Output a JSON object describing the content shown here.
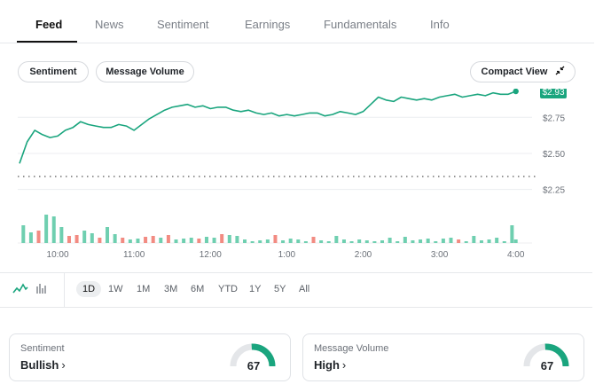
{
  "tabs": [
    {
      "label": "Feed",
      "active": true
    },
    {
      "label": "News"
    },
    {
      "label": "Sentiment"
    },
    {
      "label": "Earnings"
    },
    {
      "label": "Fundamentals"
    },
    {
      "label": "Info"
    }
  ],
  "toggles": {
    "sentiment": "Sentiment",
    "message_volume": "Message Volume",
    "compact_view": "Compact View"
  },
  "chart_data": {
    "type": "line",
    "price_label": "$2.93",
    "accent": "#1aa57e",
    "volume_up_color": "#6fcfb0",
    "volume_down_color": "#f28b82",
    "y_ticks": [
      "$2.75",
      "$2.50",
      "$2.25"
    ],
    "y_tick_values": [
      2.75,
      2.5,
      2.25
    ],
    "ylim": [
      2.18,
      3.0
    ],
    "x_ticks": [
      "10:00",
      "11:00",
      "12:00",
      "1:00",
      "2:00",
      "3:00",
      "4:00"
    ],
    "x_tick_values": [
      0.5,
      1.5,
      2.5,
      3.5,
      4.5,
      5.5,
      6.5
    ],
    "xlim": [
      0.0,
      6.55
    ],
    "reference_line": 2.34,
    "price_x": [
      0.0,
      0.1,
      0.2,
      0.3,
      0.4,
      0.5,
      0.6,
      0.7,
      0.8,
      0.9,
      1.0,
      1.1,
      1.2,
      1.3,
      1.4,
      1.5,
      1.6,
      1.7,
      1.8,
      1.9,
      2.0,
      2.1,
      2.2,
      2.3,
      2.4,
      2.5,
      2.6,
      2.7,
      2.8,
      2.9,
      3.0,
      3.1,
      3.2,
      3.3,
      3.4,
      3.5,
      3.6,
      3.7,
      3.8,
      3.9,
      4.0,
      4.1,
      4.2,
      4.3,
      4.4,
      4.5,
      4.6,
      4.7,
      4.8,
      4.9,
      5.0,
      5.1,
      5.2,
      5.3,
      5.4,
      5.5,
      5.6,
      5.7,
      5.8,
      5.9,
      6.0,
      6.1,
      6.2,
      6.3,
      6.4,
      6.5
    ],
    "price_y": [
      2.43,
      2.58,
      2.66,
      2.63,
      2.61,
      2.62,
      2.66,
      2.68,
      2.72,
      2.7,
      2.69,
      2.68,
      2.68,
      2.7,
      2.69,
      2.66,
      2.7,
      2.74,
      2.77,
      2.8,
      2.82,
      2.83,
      2.84,
      2.82,
      2.83,
      2.81,
      2.82,
      2.82,
      2.8,
      2.79,
      2.8,
      2.78,
      2.77,
      2.78,
      2.76,
      2.77,
      2.76,
      2.77,
      2.78,
      2.78,
      2.76,
      2.77,
      2.79,
      2.78,
      2.77,
      2.79,
      2.84,
      2.89,
      2.87,
      2.86,
      2.89,
      2.88,
      2.87,
      2.88,
      2.87,
      2.89,
      2.9,
      2.91,
      2.89,
      2.9,
      2.91,
      2.9,
      2.92,
      2.91,
      2.91,
      2.93
    ],
    "volume_x": [
      0.05,
      0.15,
      0.25,
      0.35,
      0.45,
      0.55,
      0.65,
      0.75,
      0.85,
      0.95,
      1.05,
      1.15,
      1.25,
      1.35,
      1.45,
      1.55,
      1.65,
      1.75,
      1.85,
      1.95,
      2.05,
      2.15,
      2.25,
      2.35,
      2.45,
      2.55,
      2.65,
      2.75,
      2.85,
      2.95,
      3.05,
      3.15,
      3.25,
      3.35,
      3.45,
      3.55,
      3.65,
      3.75,
      3.85,
      3.95,
      4.05,
      4.15,
      4.25,
      4.35,
      4.45,
      4.55,
      4.65,
      4.75,
      4.85,
      4.95,
      5.05,
      5.15,
      5.25,
      5.35,
      5.45,
      5.55,
      5.65,
      5.75,
      5.85,
      5.95,
      6.05,
      6.15,
      6.25,
      6.35,
      6.45,
      6.5
    ],
    "volume": [
      20,
      12,
      14,
      32,
      30,
      18,
      8,
      9,
      14,
      11,
      6,
      18,
      10,
      6,
      4,
      5,
      7,
      8,
      6,
      9,
      4,
      5,
      6,
      5,
      7,
      6,
      10,
      9,
      8,
      4,
      2,
      3,
      4,
      9,
      3,
      5,
      4,
      2,
      7,
      3,
      2,
      8,
      4,
      2,
      4,
      3,
      2,
      3,
      6,
      2,
      7,
      3,
      4,
      5,
      2,
      5,
      6,
      4,
      2,
      8,
      3,
      4,
      6,
      2,
      20,
      4
    ],
    "volume_dir": [
      "u",
      "u",
      "d",
      "u",
      "u",
      "u",
      "d",
      "d",
      "u",
      "u",
      "d",
      "u",
      "u",
      "d",
      "u",
      "u",
      "d",
      "d",
      "u",
      "d",
      "u",
      "u",
      "u",
      "d",
      "u",
      "u",
      "d",
      "u",
      "u",
      "u",
      "u",
      "u",
      "u",
      "d",
      "u",
      "u",
      "u",
      "u",
      "d",
      "u",
      "u",
      "u",
      "u",
      "u",
      "u",
      "u",
      "u",
      "u",
      "u",
      "u",
      "u",
      "u",
      "u",
      "u",
      "u",
      "u",
      "u",
      "d",
      "u",
      "u",
      "u",
      "u",
      "u",
      "u",
      "u",
      "u"
    ]
  },
  "chart_types": {
    "line_icon": "line-chart-icon",
    "bar_icon": "bar-chart-icon"
  },
  "ranges": [
    {
      "label": "1D",
      "active": true
    },
    {
      "label": "1W"
    },
    {
      "label": "1M"
    },
    {
      "label": "3M"
    },
    {
      "label": "6M"
    },
    {
      "label": "YTD"
    },
    {
      "label": "1Y"
    },
    {
      "label": "5Y"
    },
    {
      "label": "All"
    }
  ],
  "cards": [
    {
      "label": "Sentiment",
      "value": "Bullish",
      "score": "67",
      "score_fraction": 0.67
    },
    {
      "label": "Message Volume",
      "value": "High",
      "score": "67",
      "score_fraction": 0.67
    }
  ]
}
